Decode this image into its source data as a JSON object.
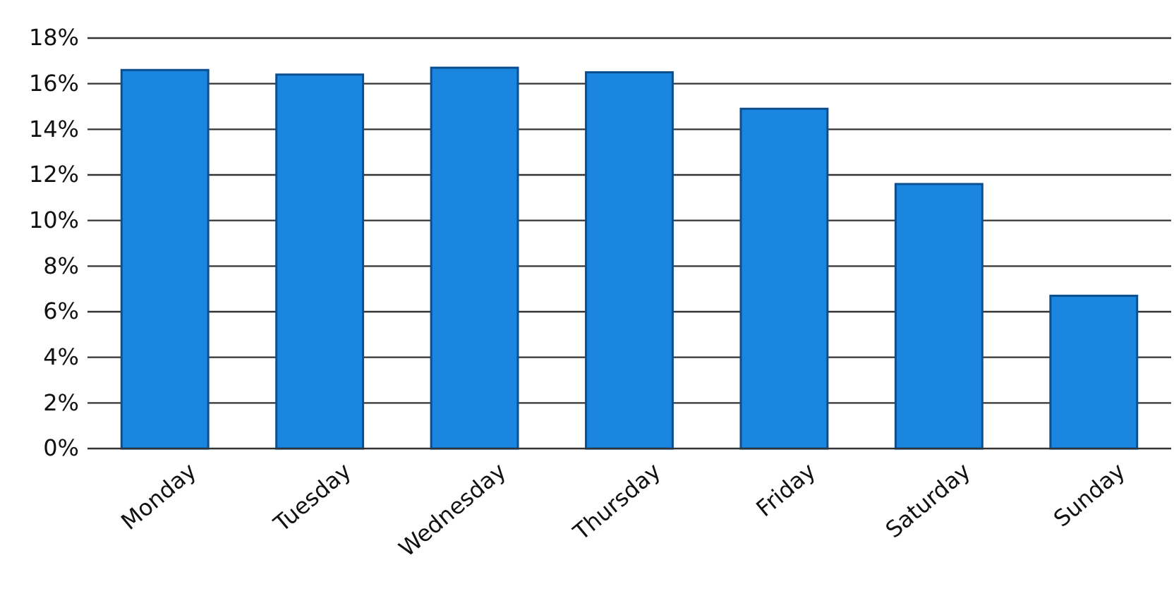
{
  "chart_data": {
    "type": "bar",
    "categories": [
      "Monday",
      "Tuesday",
      "Wednesday",
      "Thursday",
      "Friday",
      "Saturday",
      "Sunday"
    ],
    "values": [
      16.6,
      16.4,
      16.7,
      16.5,
      14.9,
      11.6,
      6.7
    ],
    "color": "#1a86e0",
    "ylim": [
      0,
      18
    ],
    "yticks": [
      {
        "value": 0,
        "label": "0%"
      },
      {
        "value": 2,
        "label": "2%"
      },
      {
        "value": 4,
        "label": "4%"
      },
      {
        "value": 6,
        "label": "6%"
      },
      {
        "value": 8,
        "label": "8%"
      },
      {
        "value": 10,
        "label": "10%"
      },
      {
        "value": 12,
        "label": "12%"
      },
      {
        "value": 14,
        "label": "14%"
      },
      {
        "value": 16,
        "label": "16%"
      },
      {
        "value": 18,
        "label": "18%"
      }
    ],
    "grid": "y"
  }
}
